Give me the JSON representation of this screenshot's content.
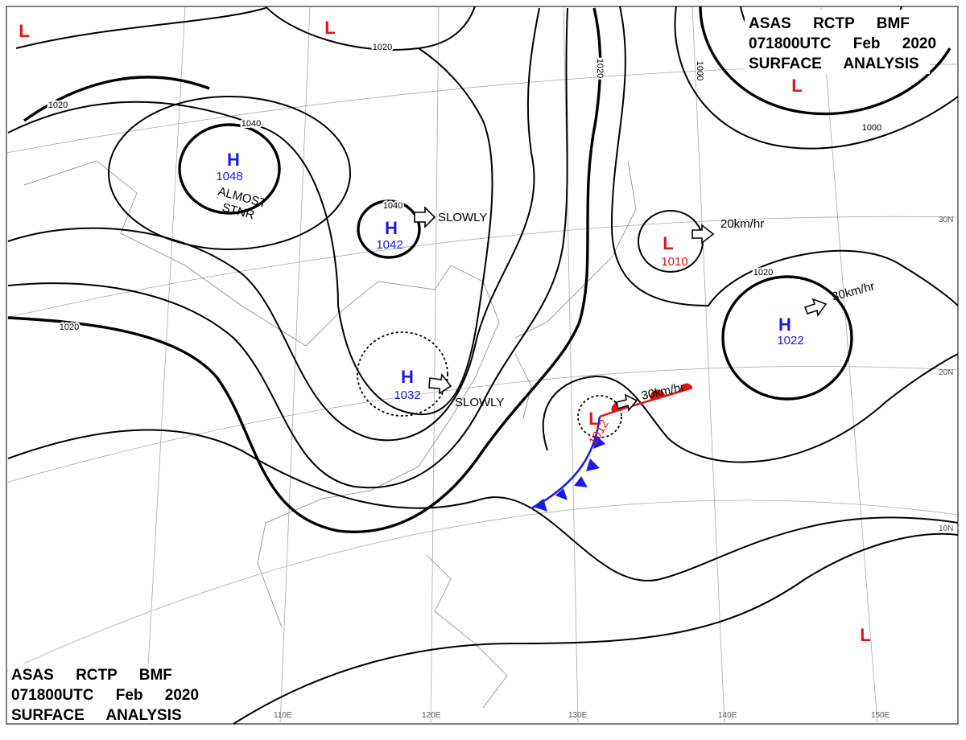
{
  "header": {
    "lines": [
      "ASAS RCTP BMF",
      "071800UTC Feb 2020",
      "SURFACE ANALYSIS"
    ]
  },
  "systems": [
    {
      "symbol": "H",
      "pressure": 1048,
      "color": "#1a1ae6"
    },
    {
      "symbol": "H",
      "pressure": 1042,
      "color": "#1a1ae6"
    },
    {
      "symbol": "H",
      "pressure": 1032,
      "color": "#1a1ae6"
    },
    {
      "symbol": "L",
      "pressure": 1010,
      "color": "#e01414"
    },
    {
      "symbol": "H",
      "pressure": 1022,
      "color": "#1a1ae6"
    },
    {
      "symbol": "L",
      "pressure": 1012,
      "color": "#e01414"
    },
    {
      "symbol": "L",
      "color": "#e01414"
    },
    {
      "symbol": "L",
      "color": "#e01414"
    },
    {
      "symbol": "L",
      "color": "#e01414"
    },
    {
      "symbol": "L",
      "color": "#e01414"
    }
  ],
  "motions": [
    "SLOWLY",
    "SLOWLY",
    "20km/hr",
    "30km/hr",
    "30km/hr"
  ],
  "note": [
    "ALMOST",
    "STNR"
  ],
  "isobar_labels": [
    1020,
    1040,
    1020,
    1020,
    1040,
    1020,
    1000,
    1000,
    1020
  ],
  "latitudes": [
    "30N",
    "20N",
    "10N"
  ],
  "longitudes": [
    "110E",
    "120E",
    "130E",
    "140E",
    "150E"
  ]
}
